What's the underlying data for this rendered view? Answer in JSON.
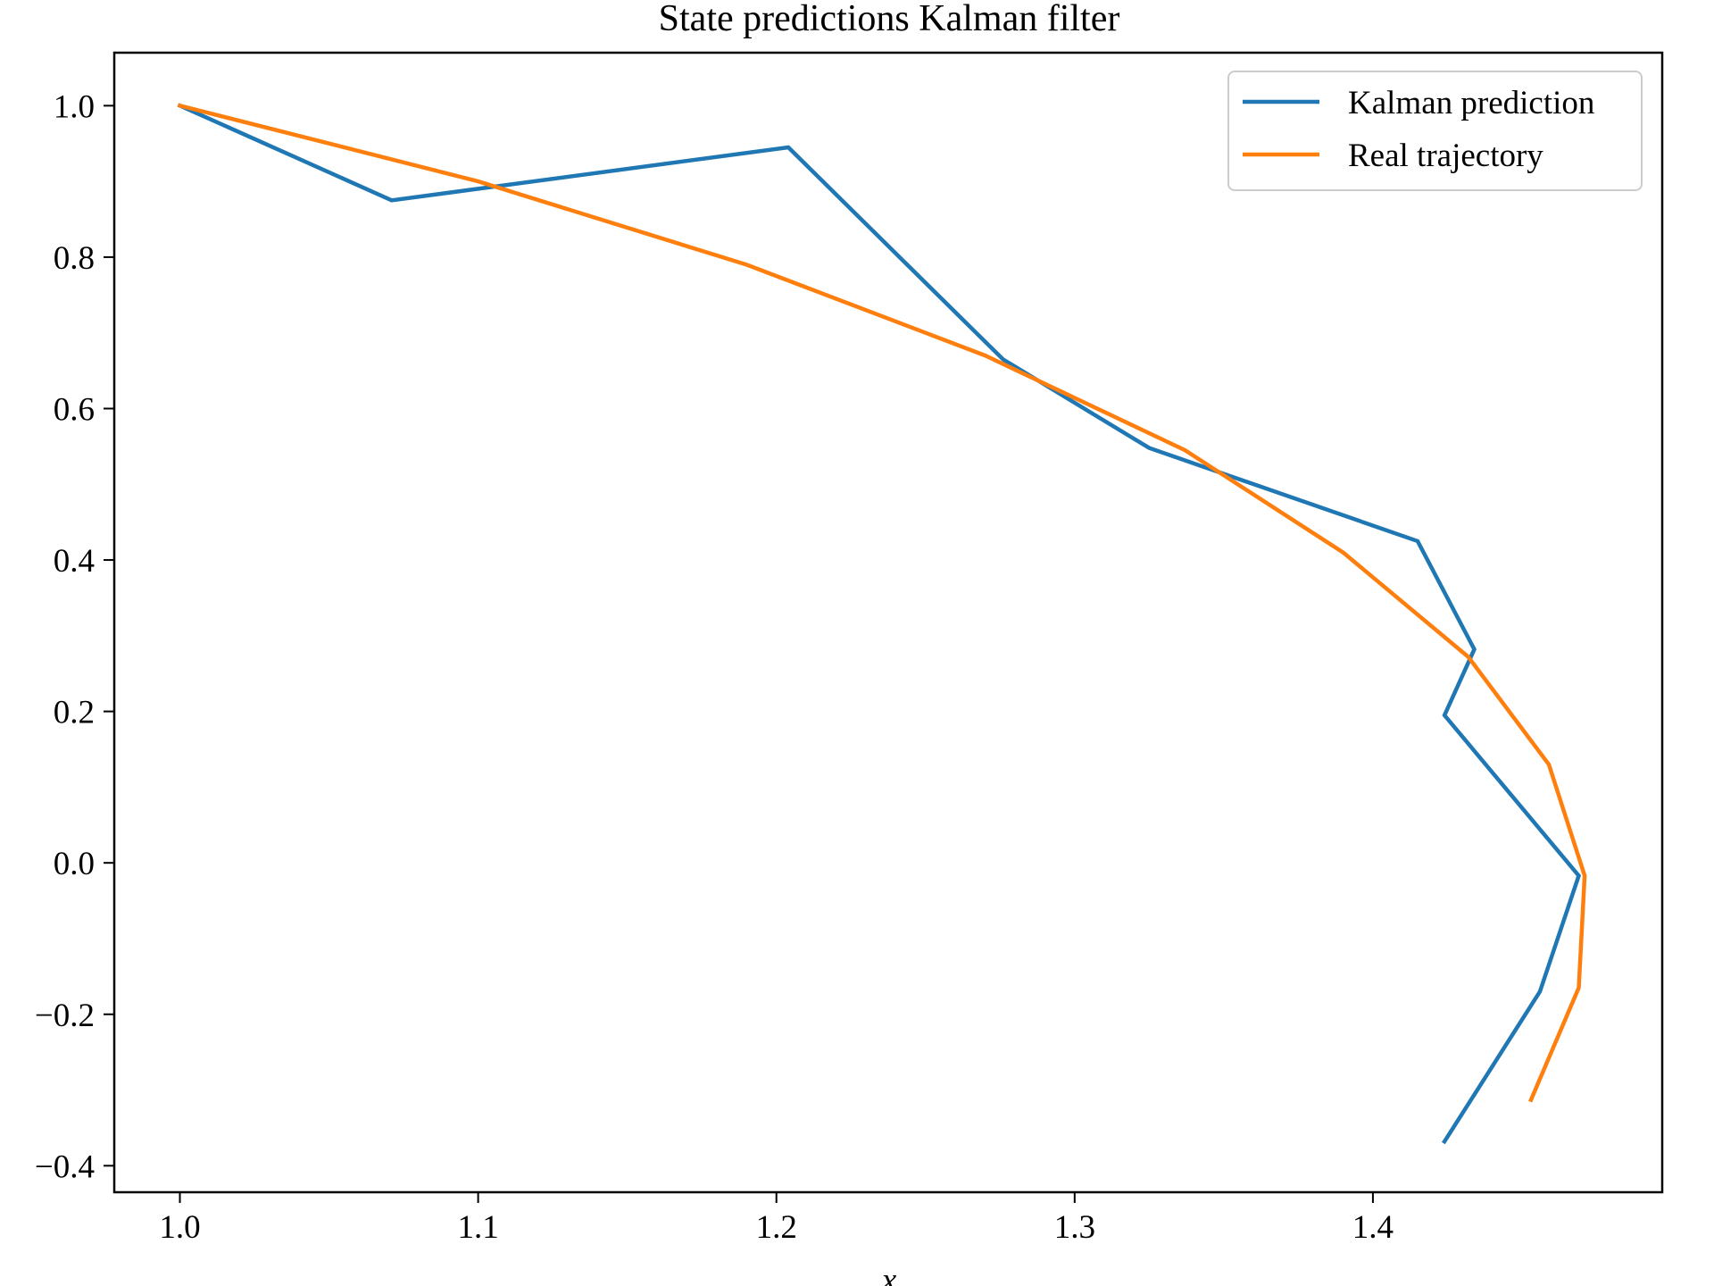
{
  "chart_data": {
    "type": "line",
    "title": "State predictions Kalman filter",
    "xlabel": "x",
    "ylabel": "",
    "xlim": [
      0.978,
      1.497
    ],
    "ylim": [
      -0.435,
      1.07
    ],
    "xticks": [
      {
        "value": 1.0,
        "label": "1.0"
      },
      {
        "value": 1.1,
        "label": "1.1"
      },
      {
        "value": 1.2,
        "label": "1.2"
      },
      {
        "value": 1.3,
        "label": "1.3"
      },
      {
        "value": 1.4,
        "label": "1.4"
      }
    ],
    "yticks": [
      {
        "value": -0.4,
        "label": "−0.4"
      },
      {
        "value": -0.2,
        "label": "−0.2"
      },
      {
        "value": 0.0,
        "label": "0.0"
      },
      {
        "value": 0.2,
        "label": "0.2"
      },
      {
        "value": 0.4,
        "label": "0.4"
      },
      {
        "value": 0.6,
        "label": "0.6"
      },
      {
        "value": 0.8,
        "label": "0.8"
      },
      {
        "value": 1.0,
        "label": "1.0"
      }
    ],
    "grid": false,
    "legend_position": "top-right",
    "series": [
      {
        "name": "Kalman prediction",
        "color": "#1f77b4",
        "points": [
          {
            "x": 1.0,
            "y": 1.0
          },
          {
            "x": 1.071,
            "y": 0.875
          },
          {
            "x": 1.204,
            "y": 0.945
          },
          {
            "x": 1.276,
            "y": 0.665
          },
          {
            "x": 1.325,
            "y": 0.548
          },
          {
            "x": 1.415,
            "y": 0.425
          },
          {
            "x": 1.434,
            "y": 0.282
          },
          {
            "x": 1.424,
            "y": 0.195
          },
          {
            "x": 1.469,
            "y": -0.017
          },
          {
            "x": 1.456,
            "y": -0.17
          },
          {
            "x": 1.424,
            "y": -0.368
          }
        ]
      },
      {
        "name": "Real trajectory",
        "color": "#ff7f0e",
        "points": [
          {
            "x": 1.0,
            "y": 1.0
          },
          {
            "x": 1.1,
            "y": 0.9
          },
          {
            "x": 1.19,
            "y": 0.79
          },
          {
            "x": 1.27,
            "y": 0.67
          },
          {
            "x": 1.337,
            "y": 0.545
          },
          {
            "x": 1.39,
            "y": 0.41
          },
          {
            "x": 1.432,
            "y": 0.272
          },
          {
            "x": 1.459,
            "y": 0.13
          },
          {
            "x": 1.471,
            "y": -0.017
          },
          {
            "x": 1.469,
            "y": -0.165
          },
          {
            "x": 1.453,
            "y": -0.313
          }
        ]
      }
    ]
  }
}
